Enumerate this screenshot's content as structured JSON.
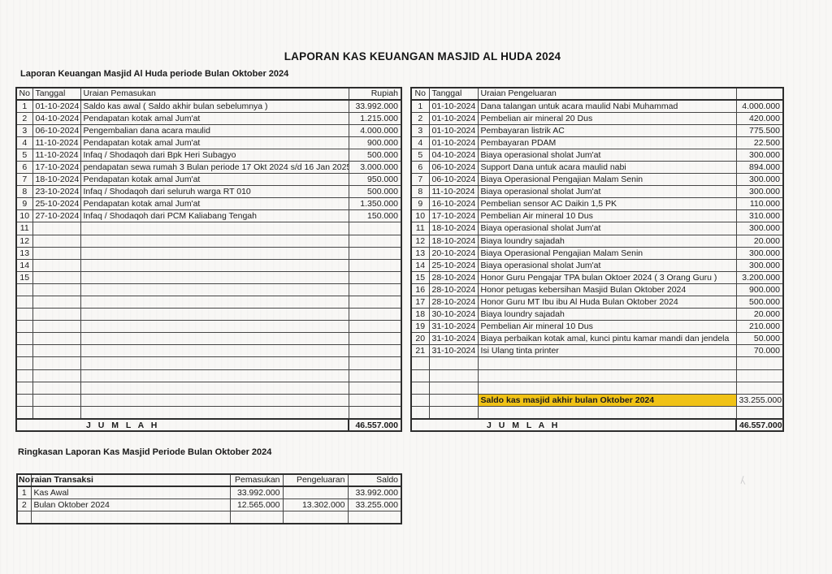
{
  "page": {
    "title": "LAPORAN KAS KEUANGAN MASJID AL HUDA 2024"
  },
  "income_section": {
    "subtitle": "Laporan Keuangan Masjid Al Huda periode Bulan Oktober 2024",
    "headers": {
      "no": "No",
      "tanggal": "Tanggal",
      "uraian": "Uraian Pemasukan",
      "rupiah": "Rupiah"
    },
    "rows": [
      {
        "no": "1",
        "tanggal": "01-10-2024",
        "uraian": "Saldo kas awal ( Saldo akhir  bulan sebelumnya )",
        "rupiah": "33.992.000"
      },
      {
        "no": "2",
        "tanggal": "04-10-2024",
        "uraian": "Pendapatan kotak amal Jum'at",
        "rupiah": "1.215.000"
      },
      {
        "no": "3",
        "tanggal": "06-10-2024",
        "uraian": "Pengembalian dana acara maulid",
        "rupiah": "4.000.000"
      },
      {
        "no": "4",
        "tanggal": "11-10-2024",
        "uraian": "Pendapatan kotak amal Jum'at",
        "rupiah": "900.000"
      },
      {
        "no": "5",
        "tanggal": "11-10-2024",
        "uraian": "Infaq / Shodaqoh dari Bpk Heri Subagyo",
        "rupiah": "500.000"
      },
      {
        "no": "6",
        "tanggal": "17-10-2024",
        "uraian": "pendapatan sewa rumah 3 Bulan periode 17 Okt 2024 s/d 16 Jan 2025",
        "rupiah": "3.000.000"
      },
      {
        "no": "7",
        "tanggal": "18-10-2024",
        "uraian": "Pendapatan kotak amal Jum'at",
        "rupiah": "950.000"
      },
      {
        "no": "8",
        "tanggal": "23-10-2024",
        "uraian": "Infaq / Shodaqoh dari seluruh warga RT 010",
        "rupiah": "500.000"
      },
      {
        "no": "9",
        "tanggal": "25-10-2024",
        "uraian": "Pendapatan kotak amal Jum'at",
        "rupiah": "1.350.000"
      },
      {
        "no": "10",
        "tanggal": "27-10-2024",
        "uraian": "Infaq / Shodaqoh dari PCM Kaliabang Tengah",
        "rupiah": "150.000"
      },
      {
        "no": "11",
        "tanggal": "",
        "uraian": "",
        "rupiah": ""
      },
      {
        "no": "12",
        "tanggal": "",
        "uraian": "",
        "rupiah": ""
      },
      {
        "no": "13",
        "tanggal": "",
        "uraian": "",
        "rupiah": ""
      },
      {
        "no": "14",
        "tanggal": "",
        "uraian": "",
        "rupiah": ""
      },
      {
        "no": "15",
        "tanggal": "",
        "uraian": "",
        "rupiah": ""
      },
      {
        "no": "",
        "tanggal": "",
        "uraian": "",
        "rupiah": ""
      },
      {
        "no": "",
        "tanggal": "",
        "uraian": "",
        "rupiah": ""
      },
      {
        "no": "",
        "tanggal": "",
        "uraian": "",
        "rupiah": ""
      },
      {
        "no": "",
        "tanggal": "",
        "uraian": "",
        "rupiah": ""
      },
      {
        "no": "",
        "tanggal": "",
        "uraian": "",
        "rupiah": ""
      },
      {
        "no": "",
        "tanggal": "",
        "uraian": "",
        "rupiah": ""
      },
      {
        "no": "",
        "tanggal": "",
        "uraian": "",
        "rupiah": ""
      },
      {
        "no": "",
        "tanggal": "",
        "uraian": "",
        "rupiah": ""
      },
      {
        "no": "",
        "tanggal": "",
        "uraian": "",
        "rupiah": ""
      },
      {
        "no": "",
        "tanggal": "",
        "uraian": "",
        "rupiah": ""
      },
      {
        "no": "",
        "tanggal": "",
        "uraian": "",
        "rupiah": ""
      }
    ],
    "total_label": "J U M L A H",
    "total_value": "46.557.000"
  },
  "expense_section": {
    "headers": {
      "no": "No",
      "tanggal": "Tanggal",
      "uraian": "Uraian Pengeluaran",
      "rupiah": ""
    },
    "highlight_color": "#f0c216",
    "rows": [
      {
        "no": "1",
        "tanggal": "01-10-2024",
        "uraian": "Dana talangan untuk acara maulid Nabi Muhammad",
        "rupiah": "4.000.000"
      },
      {
        "no": "2",
        "tanggal": "01-10-2024",
        "uraian": "Pembelian air mineral 20 Dus",
        "rupiah": "420.000"
      },
      {
        "no": "3",
        "tanggal": "01-10-2024",
        "uraian": "Pembayaran listrik AC",
        "rupiah": "775.500"
      },
      {
        "no": "4",
        "tanggal": "01-10-2024",
        "uraian": "Pembayaran PDAM",
        "rupiah": "22.500"
      },
      {
        "no": "5",
        "tanggal": "04-10-2024",
        "uraian": "Biaya operasional sholat Jum'at",
        "rupiah": "300.000"
      },
      {
        "no": "6",
        "tanggal": "06-10-2024",
        "uraian": "Support Dana untuk acara maulid nabi",
        "rupiah": "894.000"
      },
      {
        "no": "7",
        "tanggal": "06-10-2024",
        "uraian": "Biaya Operasional Pengajian Malam Senin",
        "rupiah": "300.000"
      },
      {
        "no": "8",
        "tanggal": "11-10-2024",
        "uraian": "Biaya operasional sholat Jum'at",
        "rupiah": "300.000"
      },
      {
        "no": "9",
        "tanggal": "16-10-2024",
        "uraian": "Pembelian sensor AC Daikin 1,5 PK",
        "rupiah": "110.000"
      },
      {
        "no": "10",
        "tanggal": "17-10-2024",
        "uraian": "Pembelian Air mineral 10 Dus",
        "rupiah": "310.000"
      },
      {
        "no": "11",
        "tanggal": "18-10-2024",
        "uraian": "Biaya operasional sholat Jum'at",
        "rupiah": "300.000"
      },
      {
        "no": "12",
        "tanggal": "18-10-2024",
        "uraian": "Biaya loundry sajadah",
        "rupiah": "20.000"
      },
      {
        "no": "13",
        "tanggal": "20-10-2024",
        "uraian": "Biaya Operasional Pengajian Malam Senin",
        "rupiah": "300.000"
      },
      {
        "no": "14",
        "tanggal": "25-10-2024",
        "uraian": "Biaya operasional sholat Jum'at",
        "rupiah": "300.000"
      },
      {
        "no": "15",
        "tanggal": "28-10-2024",
        "uraian": "Honor Guru Pengajar TPA bulan Oktoer 2024  ( 3 Orang Guru )",
        "rupiah": "3.200.000"
      },
      {
        "no": "16",
        "tanggal": "28-10-2024",
        "uraian": "Honor petugas kebersihan Masjid Bulan Oktober 2024",
        "rupiah": "900.000"
      },
      {
        "no": "17",
        "tanggal": "28-10-2024",
        "uraian": "Honor Guru MT Ibu ibu Al Huda  Bulan Oktober 2024",
        "rupiah": "500.000"
      },
      {
        "no": "18",
        "tanggal": "30-10-2024",
        "uraian": "Biaya loundry sajadah",
        "rupiah": "20.000"
      },
      {
        "no": "19",
        "tanggal": "31-10-2024",
        "uraian": "Pembelian Air mineral 10 Dus",
        "rupiah": "210.000"
      },
      {
        "no": "20",
        "tanggal": "31-10-2024",
        "uraian": "Biaya perbaikan kotak amal, kunci pintu kamar mandi dan jendela",
        "rupiah": "50.000"
      },
      {
        "no": "21",
        "tanggal": "31-10-2024",
        "uraian": "Isi Ulang tinta printer",
        "rupiah": "70.000"
      },
      {
        "no": "",
        "tanggal": "",
        "uraian": "",
        "rupiah": ""
      },
      {
        "no": "",
        "tanggal": "",
        "uraian": "",
        "rupiah": ""
      },
      {
        "no": "",
        "tanggal": "",
        "uraian": "",
        "rupiah": ""
      },
      {
        "no": "",
        "tanggal": "",
        "uraian": "Saldo kas masjid akhir bulan  Oktober  2024",
        "rupiah": "33.255.000",
        "highlight": true
      },
      {
        "no": "",
        "tanggal": "",
        "uraian": "",
        "rupiah": ""
      }
    ],
    "total_label": "J U M L A H",
    "total_value": "46.557.000"
  },
  "summary_section": {
    "title": "Ringkasan Laporan Kas Masjid Periode Bulan Oktober 2024",
    "headers": {
      "no": "No",
      "uraian": "raian Transaksi",
      "pemasukan": "Pemasukan",
      "pengeluaran": "Pengeluaran",
      "saldo": "Saldo"
    },
    "rows": [
      {
        "no": "1",
        "uraian": "Kas Awal",
        "pemasukan": "33.992.000",
        "pengeluaran": "",
        "saldo": "33.992.000"
      },
      {
        "no": "2",
        "uraian": "Bulan Oktober 2024",
        "pemasukan": "12.565.000",
        "pengeluaran": "13.302.000",
        "saldo": "33.255.000"
      },
      {
        "no": "",
        "uraian": "",
        "pemasukan": "",
        "pengeluaran": "",
        "saldo": ""
      }
    ]
  }
}
